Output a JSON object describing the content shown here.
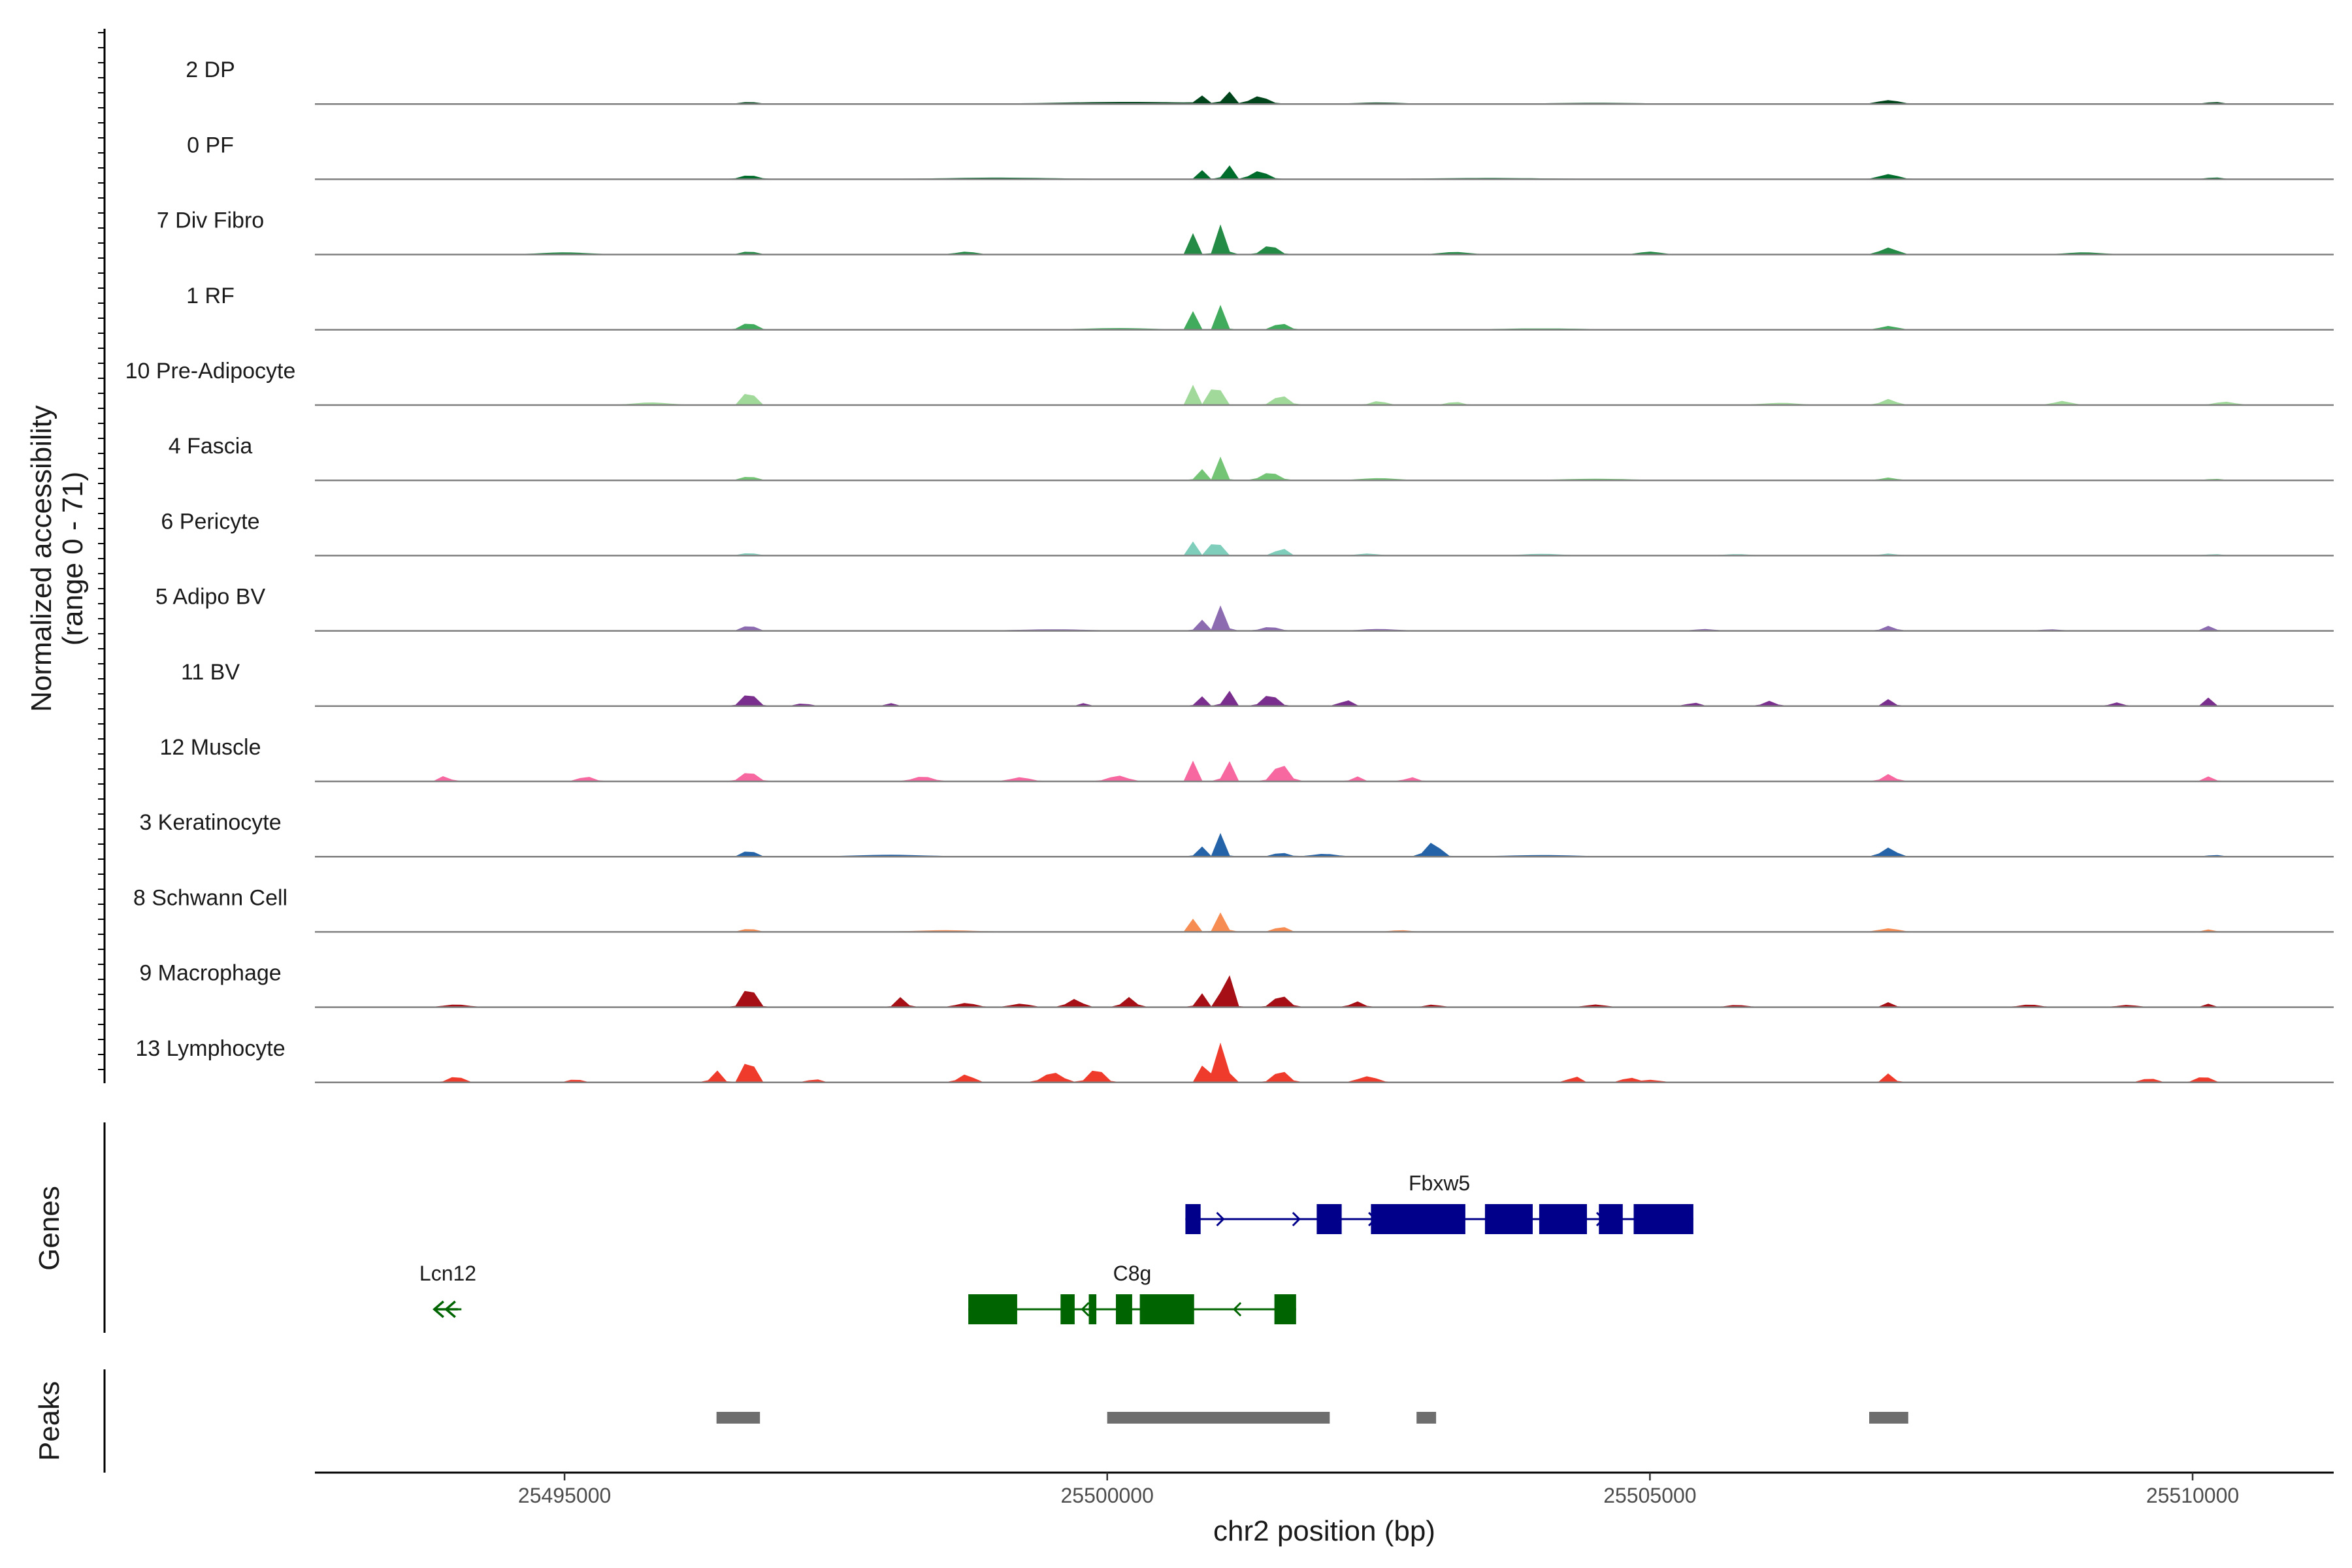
{
  "chart_data": {
    "type": "area",
    "title": "",
    "chromosome": "chr2",
    "xlabel": "chr2 position (bp)",
    "ylabel": "Normalized accessibility",
    "ylabel_range": "(range 0 - 71)",
    "ylim": [
      0,
      71
    ],
    "xlim": [
      25492700,
      25511300
    ],
    "x_ticks": [
      25495000,
      25500000,
      25505000,
      25510000
    ],
    "x_tick_labels": [
      "25495000",
      "25500000",
      "25505000",
      "25510000"
    ],
    "panel_labels": {
      "genes": "Genes",
      "peaks": "Peaks"
    },
    "tracks": [
      {
        "name": "2 DP",
        "color": "#00441b",
        "scale": 0.75,
        "peaks": [
          [
            25501100,
            70,
            25
          ],
          [
            25500850,
            45,
            22
          ],
          [
            25501400,
            25,
            70
          ],
          [
            25500200,
            6,
            600
          ],
          [
            25496700,
            6,
            70
          ],
          [
            25507200,
            12,
            90
          ],
          [
            25510200,
            6,
            60
          ],
          [
            25502500,
            4,
            200
          ],
          [
            25504500,
            3,
            400
          ]
        ]
      },
      {
        "name": "0 PF",
        "color": "#006d2c",
        "scale": 0.82,
        "peaks": [
          [
            25501100,
            75,
            25
          ],
          [
            25500850,
            50,
            22
          ],
          [
            25501400,
            25,
            70
          ],
          [
            25496700,
            12,
            70
          ],
          [
            25507200,
            15,
            80
          ],
          [
            25510200,
            5,
            60
          ],
          [
            25499000,
            4,
            500
          ],
          [
            25503500,
            3,
            500
          ]
        ]
      },
      {
        "name": "7 Div Fibro",
        "color": "#238b45",
        "scale": 0.95,
        "peaks": [
          [
            25501050,
            80,
            35
          ],
          [
            25500800,
            60,
            25
          ],
          [
            25501500,
            25,
            60
          ],
          [
            25496700,
            8,
            60
          ],
          [
            25507200,
            18,
            70
          ],
          [
            25495000,
            5,
            200
          ],
          [
            25498700,
            7,
            80
          ],
          [
            25503200,
            6,
            120
          ],
          [
            25505000,
            7,
            90
          ],
          [
            25509000,
            5,
            150
          ]
        ]
      },
      {
        "name": "1 RF",
        "color": "#41ab5d",
        "scale": 0.9,
        "peaks": [
          [
            25501050,
            70,
            30
          ],
          [
            25500800,
            55,
            25
          ],
          [
            25501600,
            18,
            60
          ],
          [
            25496700,
            20,
            60
          ],
          [
            25507200,
            10,
            70
          ],
          [
            25500100,
            4,
            300
          ],
          [
            25504000,
            3,
            400
          ]
        ]
      },
      {
        "name": "10 Pre-Adipocyte",
        "color": "#a1d99b",
        "scale": 0.98,
        "peaks": [
          [
            25501000,
            80,
            35
          ],
          [
            25500800,
            55,
            25
          ],
          [
            25501600,
            25,
            60
          ],
          [
            25496700,
            45,
            40
          ],
          [
            25507200,
            15,
            60
          ],
          [
            25495800,
            6,
            150
          ],
          [
            25502500,
            10,
            60
          ],
          [
            25503200,
            8,
            60
          ],
          [
            25508800,
            10,
            70
          ],
          [
            25510300,
            8,
            80
          ],
          [
            25506200,
            5,
            150
          ]
        ]
      },
      {
        "name": "4 Fascia",
        "color": "#74c476",
        "scale": 0.8,
        "peaks": [
          [
            25501050,
            75,
            30
          ],
          [
            25500850,
            55,
            25
          ],
          [
            25501500,
            25,
            70
          ],
          [
            25496700,
            12,
            60
          ],
          [
            25507200,
            8,
            60
          ],
          [
            25502500,
            6,
            150
          ],
          [
            25504500,
            4,
            300
          ],
          [
            25510200,
            4,
            60
          ]
        ]
      },
      {
        "name": "6 Pericyte",
        "color": "#7fcdbb",
        "scale": 0.75,
        "peaks": [
          [
            25501000,
            75,
            35
          ],
          [
            25500800,
            50,
            25
          ],
          [
            25501600,
            30,
            40
          ],
          [
            25496700,
            8,
            60
          ],
          [
            25507200,
            6,
            60
          ],
          [
            25502400,
            6,
            80
          ],
          [
            25504000,
            5,
            150
          ],
          [
            25505800,
            4,
            100
          ],
          [
            25510200,
            4,
            60
          ]
        ]
      },
      {
        "name": "5 Adipo BV",
        "color": "#8c6bb1",
        "scale": 0.8,
        "peaks": [
          [
            25501050,
            80,
            35
          ],
          [
            25500850,
            55,
            25
          ],
          [
            25501500,
            12,
            70
          ],
          [
            25496700,
            18,
            50
          ],
          [
            25507200,
            15,
            50
          ],
          [
            25510150,
            15,
            40
          ],
          [
            25499500,
            4,
            300
          ],
          [
            25502500,
            5,
            150
          ],
          [
            25505500,
            5,
            80
          ],
          [
            25508700,
            4,
            80
          ]
        ]
      },
      {
        "name": "11 BV",
        "color": "#7a2e8e",
        "scale": 0.85,
        "peaks": [
          [
            25501100,
            80,
            25
          ],
          [
            25500850,
            45,
            25
          ],
          [
            25501500,
            35,
            60
          ],
          [
            25496700,
            40,
            55
          ],
          [
            25507200,
            20,
            40
          ],
          [
            25510150,
            25,
            30
          ],
          [
            25502200,
            18,
            50
          ],
          [
            25506100,
            15,
            50
          ],
          [
            25509300,
            10,
            50
          ],
          [
            25498000,
            8,
            40
          ],
          [
            25505400,
            10,
            50
          ],
          [
            25499800,
            10,
            30
          ],
          [
            25497200,
            8,
            50
          ]
        ]
      },
      {
        "name": "12 Muscle",
        "color": "#f768a1",
        "scale": 1.0,
        "peaks": [
          [
            25501100,
            90,
            25
          ],
          [
            25500800,
            55,
            25
          ],
          [
            25501600,
            45,
            60
          ],
          [
            25496700,
            25,
            60
          ],
          [
            25507200,
            18,
            50
          ],
          [
            25510150,
            12,
            40
          ],
          [
            25493900,
            14,
            40
          ],
          [
            25495200,
            12,
            60
          ],
          [
            25498300,
            12,
            80
          ],
          [
            25499200,
            10,
            80
          ],
          [
            25500100,
            14,
            80
          ],
          [
            25502300,
            12,
            40
          ],
          [
            25502800,
            10,
            50
          ]
        ]
      },
      {
        "name": "3 Keratinocyte",
        "color": "#2563a8",
        "scale": 0.8,
        "peaks": [
          [
            25501050,
            75,
            30
          ],
          [
            25500850,
            50,
            25
          ],
          [
            25503000,
            45,
            60
          ],
          [
            25496700,
            22,
            45
          ],
          [
            25507200,
            28,
            60
          ],
          [
            25502000,
            8,
            100
          ],
          [
            25501600,
            12,
            60
          ],
          [
            25498000,
            5,
            300
          ],
          [
            25504000,
            4,
            300
          ],
          [
            25510200,
            5,
            50
          ]
        ]
      },
      {
        "name": "8 Schwann Cell",
        "color": "#f68c51",
        "scale": 0.7,
        "peaks": [
          [
            25501050,
            70,
            35
          ],
          [
            25500800,
            50,
            25
          ],
          [
            25501600,
            20,
            50
          ],
          [
            25496700,
            12,
            50
          ],
          [
            25507200,
            12,
            80
          ],
          [
            25510150,
            8,
            40
          ],
          [
            25498500,
            5,
            250
          ],
          [
            25502700,
            5,
            80
          ]
        ]
      },
      {
        "name": "9 Macrophage",
        "color": "#a50f15",
        "scale": 1.0,
        "peaks": [
          [
            25501100,
            100,
            40
          ],
          [
            25500850,
            55,
            25
          ],
          [
            25501600,
            30,
            60
          ],
          [
            25496700,
            55,
            50
          ],
          [
            25498100,
            25,
            40
          ],
          [
            25499700,
            20,
            60
          ],
          [
            25500200,
            25,
            50
          ],
          [
            25502300,
            14,
            50
          ],
          [
            25507200,
            12,
            40
          ],
          [
            25510150,
            8,
            30
          ],
          [
            25494000,
            6,
            100
          ],
          [
            25498700,
            10,
            80
          ],
          [
            25499200,
            8,
            80
          ],
          [
            25503000,
            6,
            60
          ],
          [
            25504500,
            6,
            80
          ],
          [
            25505800,
            5,
            80
          ],
          [
            25508500,
            6,
            80
          ],
          [
            25509400,
            5,
            80
          ]
        ]
      },
      {
        "name": "13 Lymphocyte",
        "color": "#ef3b2c",
        "scale": 1.0,
        "peaks": [
          [
            25501050,
            100,
            45
          ],
          [
            25500900,
            60,
            30
          ],
          [
            25501600,
            30,
            60
          ],
          [
            25496700,
            75,
            40
          ],
          [
            25496400,
            30,
            40
          ],
          [
            25499900,
            35,
            60
          ],
          [
            25499500,
            25,
            80
          ],
          [
            25498700,
            20,
            60
          ],
          [
            25494000,
            15,
            60
          ],
          [
            25502400,
            15,
            80
          ],
          [
            25504300,
            18,
            40
          ],
          [
            25504800,
            15,
            40
          ],
          [
            25507200,
            22,
            40
          ],
          [
            25510100,
            15,
            60
          ],
          [
            25509600,
            10,
            60
          ],
          [
            25495100,
            10,
            40
          ],
          [
            25497300,
            10,
            40
          ],
          [
            25505000,
            6,
            80
          ]
        ]
      }
    ],
    "genes": [
      {
        "name": "Fbxw5",
        "strand": "+",
        "color": "#00008b",
        "start": 25500720,
        "end": 25505400,
        "exons": [
          [
            25500720,
            25500860
          ],
          [
            25501930,
            25502160
          ],
          [
            25502430,
            25503300
          ],
          [
            25503480,
            25503920
          ],
          [
            25503980,
            25504420
          ],
          [
            25504530,
            25504750
          ],
          [
            25504850,
            25505400
          ]
        ]
      },
      {
        "name": "C8g",
        "strand": "-",
        "color": "#006400",
        "start": 25498720,
        "end": 25501740,
        "exons": [
          [
            25498720,
            25499170
          ],
          [
            25499570,
            25499700
          ],
          [
            25499830,
            25499900
          ],
          [
            25500080,
            25500230
          ],
          [
            25500300,
            25500800
          ],
          [
            25501540,
            25501740
          ]
        ]
      },
      {
        "name": "Lcn12",
        "strand": "-",
        "color": "#006400",
        "start": 25493800,
        "end": 25494050,
        "exons": []
      }
    ],
    "peaks": [
      [
        25496400,
        25496800
      ],
      [
        25500000,
        25502050
      ],
      [
        25502850,
        25503030
      ],
      [
        25507020,
        25507380
      ]
    ]
  }
}
